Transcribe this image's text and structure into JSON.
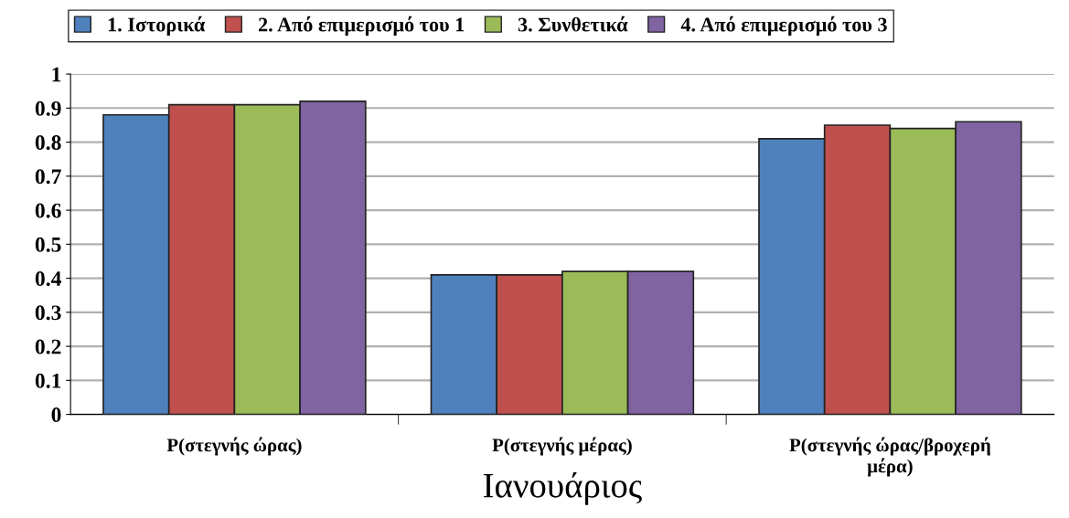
{
  "chart_data": {
    "type": "bar",
    "xlabel": "Ιανουάριος",
    "categories": [
      "P(στεγνής ώρας)",
      "P(στεγνής μέρας)",
      "P(στεγνής ώρας/βροχερή μέρα)"
    ],
    "series": [
      {
        "name": "1. Ιστορικά",
        "color": "#4f81bd",
        "values": [
          0.88,
          0.41,
          0.81
        ]
      },
      {
        "name": "2. Από επιμερισμό του 1",
        "color": "#c0504d",
        "values": [
          0.91,
          0.41,
          0.85
        ]
      },
      {
        "name": "3. Συνθετικά",
        "color": "#9bbb59",
        "values": [
          0.91,
          0.42,
          0.84
        ]
      },
      {
        "name": "4. Από επιμερισμό του 3",
        "color": "#8064a2",
        "values": [
          0.92,
          0.42,
          0.86
        ]
      }
    ],
    "ylim": [
      0,
      1
    ],
    "yticks": [
      0,
      0.1,
      0.2,
      0.3,
      0.4,
      0.5,
      0.6,
      0.7,
      0.8,
      0.9,
      1
    ],
    "grid": "y",
    "legend": "top"
  }
}
